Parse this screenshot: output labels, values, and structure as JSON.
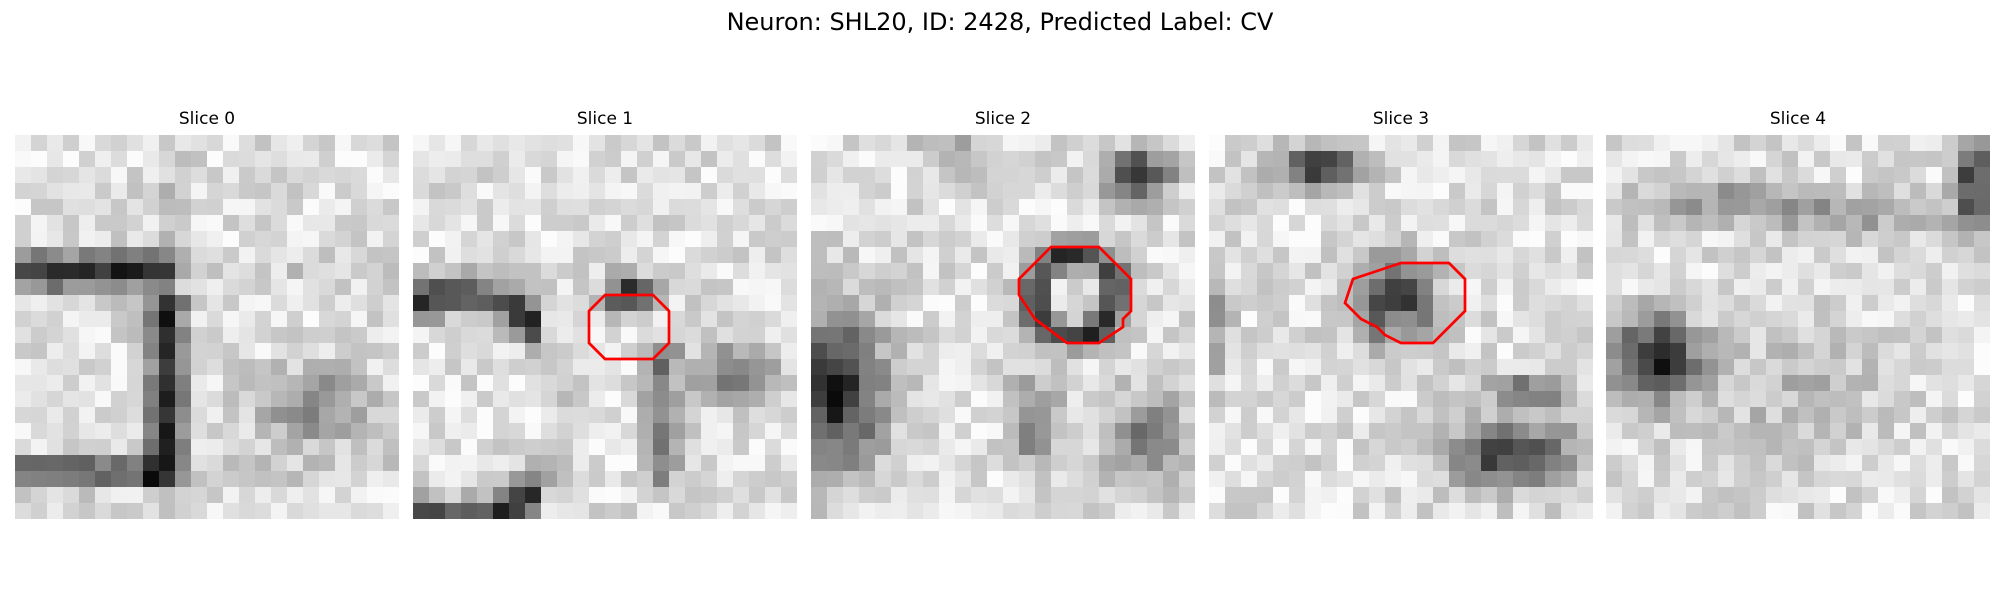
{
  "figure": {
    "title": "Neuron: SHL20, ID: 2428, Predicted Label: CV"
  },
  "colors": {
    "contour": "#ff0000",
    "background": "#ffffff"
  },
  "panels": [
    {
      "title": "Slice 0",
      "has_contour": false,
      "contour_points": []
    },
    {
      "title": "Slice 1",
      "has_contour": true,
      "contour_points": [
        [
          12,
          10
        ],
        [
          15,
          10
        ],
        [
          16,
          11
        ],
        [
          16,
          13
        ],
        [
          15,
          14
        ],
        [
          12,
          14
        ],
        [
          11,
          13
        ],
        [
          11,
          11
        ]
      ]
    },
    {
      "title": "Slice 2",
      "has_contour": true,
      "contour_points": [
        [
          15,
          7
        ],
        [
          18,
          7
        ],
        [
          20,
          9
        ],
        [
          20,
          11
        ],
        [
          19.5,
          11.5
        ],
        [
          19.5,
          12
        ],
        [
          18,
          13
        ],
        [
          16,
          13
        ],
        [
          14,
          11.5
        ],
        [
          13,
          10
        ],
        [
          13,
          9
        ]
      ]
    },
    {
      "title": "Slice 3",
      "has_contour": true,
      "contour_points": [
        [
          12,
          8
        ],
        [
          15,
          8
        ],
        [
          16,
          9
        ],
        [
          16,
          11
        ],
        [
          14,
          13
        ],
        [
          12,
          13
        ],
        [
          11,
          12.5
        ],
        [
          10.5,
          12
        ],
        [
          9.5,
          11.5
        ],
        [
          8.5,
          10.5
        ],
        [
          9,
          9
        ],
        [
          10.5,
          8.5
        ]
      ]
    },
    {
      "title": "Slice 4",
      "has_contour": false,
      "contour_points": []
    }
  ]
}
